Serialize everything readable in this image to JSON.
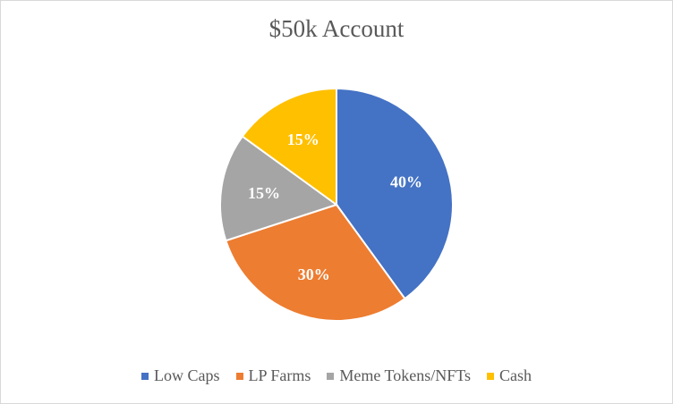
{
  "chart_data": {
    "type": "pie",
    "title": "$50k Account",
    "categories": [
      "Low Caps",
      "LP Farms",
      "Meme Tokens/NFTs",
      "Cash"
    ],
    "values": [
      40,
      30,
      15,
      15
    ],
    "data_labels": [
      "40%",
      "30%",
      "15%",
      "15%"
    ],
    "colors": [
      "#4472C4",
      "#ED7D31",
      "#A5A5A5",
      "#FFC000"
    ],
    "start_angle_deg": 0,
    "direction": "clockwise",
    "legend_position": "bottom"
  }
}
